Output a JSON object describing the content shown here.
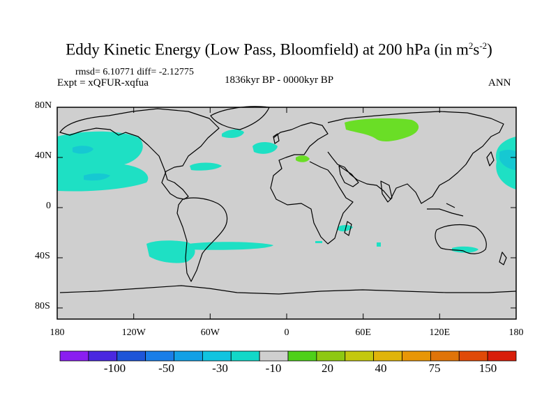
{
  "title": {
    "main": "Eddy Kinetic Energy (Low Pass, Bloomfield) at 200 hPa (in m",
    "sup1": "2",
    "mid": "s",
    "sup2": "-2",
    "end": ")"
  },
  "stats": "rmsd= 6.10771 diff= -2.12775",
  "experiment": "Expt = xQFUR-xqfua",
  "period": "1836kyr BP - 0000kyr BP",
  "season": "ANN",
  "y_axis_labels": [
    "80N",
    "40N",
    "0",
    "40S",
    "80S"
  ],
  "x_axis_labels": [
    "180",
    "120W",
    "60W",
    "0",
    "60E",
    "120E",
    "180"
  ],
  "colorbar": {
    "colors": [
      "#8a1ef0",
      "#4a28e0",
      "#1e55d8",
      "#1a7ee8",
      "#12a0e6",
      "#10c4e0",
      "#12d8c8",
      "#cfcfcf",
      "#4ed01a",
      "#8ec812",
      "#c4c80e",
      "#e0b40a",
      "#e89606",
      "#e07408",
      "#e04a08",
      "#d81e0a"
    ],
    "labels": [
      "-100",
      "-50",
      "-30",
      "-10",
      "20",
      "40",
      "75",
      "150"
    ]
  },
  "colors": {
    "land_fill": "#cfcfcf",
    "neg_fill": "#1ee0c4",
    "neg_strong": "#16c8d2",
    "pos_fill": "#6ade26"
  }
}
